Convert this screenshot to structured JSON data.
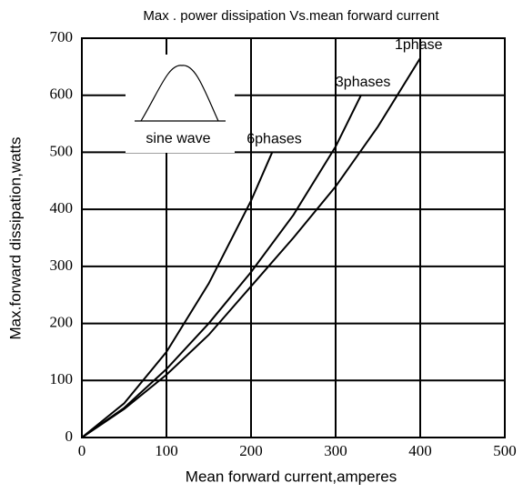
{
  "chart_data": {
    "type": "line",
    "title": "Max . power dissipation Vs.mean forward current",
    "xlabel": "Mean forward current,amperes",
    "ylabel": "Max.forward dissipation,watts",
    "annotation": "sine wave",
    "xlim": [
      0,
      500
    ],
    "xticks": [
      0,
      100,
      200,
      300,
      400,
      500
    ],
    "ylim": [
      0,
      700
    ],
    "yticks": [
      0,
      100,
      200,
      300,
      400,
      500,
      600,
      700
    ],
    "grid": true,
    "series": [
      {
        "name": "1phase",
        "color": "#000000",
        "x": [
          0,
          50,
          100,
          150,
          200,
          250,
          300,
          350,
          400
        ],
        "values": [
          0,
          50,
          110,
          180,
          265,
          350,
          440,
          545,
          665
        ]
      },
      {
        "name": "3phases",
        "color": "#000000",
        "x": [
          0,
          50,
          100,
          150,
          200,
          250,
          300,
          330
        ],
        "values": [
          0,
          52,
          120,
          200,
          290,
          390,
          510,
          600
        ]
      },
      {
        "name": "6phases",
        "color": "#000000",
        "x": [
          0,
          50,
          100,
          150,
          200,
          225
        ],
        "values": [
          0,
          60,
          150,
          270,
          415,
          500
        ]
      }
    ]
  }
}
